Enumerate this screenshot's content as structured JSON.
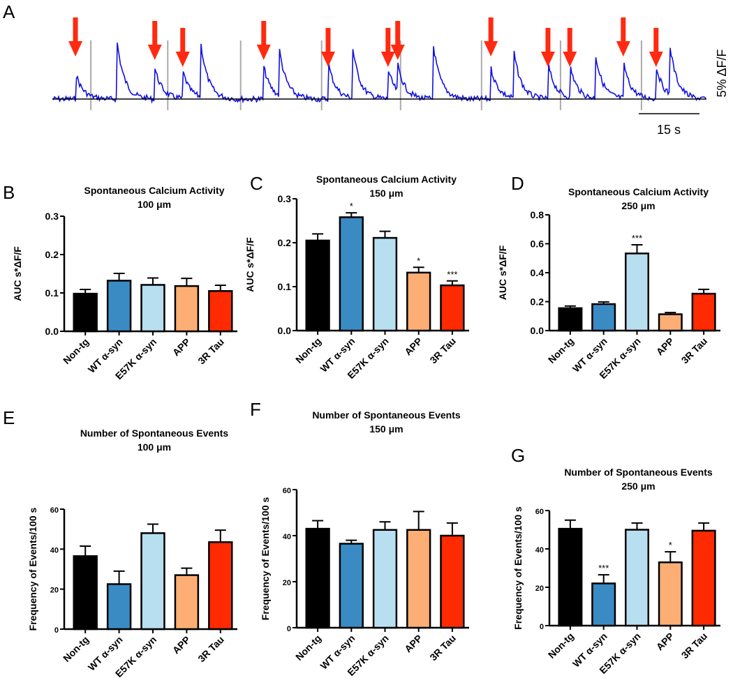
{
  "trace": {
    "label": "A",
    "scale_time": "15 s",
    "scale_amp": "5% ΔF/F",
    "arrow_times_s": [
      5.7,
      25.3,
      32.2,
      52.2,
      68.1,
      82.9,
      85.3,
      108.3,
      122.4,
      127.8,
      141.0,
      149.1
    ],
    "spike_times_s": [
      5.7,
      16,
      25.3,
      32.2,
      36.5,
      52.2,
      56,
      68.1,
      74,
      82.9,
      85.3,
      94,
      108.3,
      114,
      122.4,
      127.8,
      134,
      141.0,
      149.1,
      152.5
    ],
    "stim_times_s": [
      9.5,
      28.5,
      46.5,
      66.5,
      86,
      106,
      125.5,
      145.5
    ],
    "colors": {
      "trace": "#1010e0",
      "arrow": "#ff2a10",
      "stim": "#aaaaaa"
    }
  },
  "chart_data": [
    {
      "panel": "B",
      "type": "bar",
      "title": "Spontaneous Calcium Activity",
      "subtitle": "100 μm",
      "ylabel": "AUC s*ΔF/F",
      "ylim": [
        0,
        0.3
      ],
      "yticks": [
        "0.0",
        "0.1",
        "0.2",
        "0.3"
      ],
      "categories": [
        "Non-tg",
        "WT α-syn",
        "E57K α-syn",
        "APP",
        "3R Tau"
      ],
      "values": [
        0.098,
        0.132,
        0.121,
        0.118,
        0.105
      ],
      "errors": [
        0.011,
        0.019,
        0.018,
        0.02,
        0.015
      ],
      "significance": [
        "",
        "",
        "",
        "",
        ""
      ]
    },
    {
      "panel": "C",
      "type": "bar",
      "title": "Spontaneous Calcium Activity",
      "subtitle": "150 μm",
      "ylabel": "AUC s*ΔF/F",
      "ylim": [
        0,
        0.3
      ],
      "yticks": [
        "0.0",
        "0.1",
        "0.2",
        "0.3"
      ],
      "categories": [
        "Non-tg",
        "WT α-syn",
        "E57K α-syn",
        "APP",
        "3R Tau"
      ],
      "values": [
        0.205,
        0.258,
        0.211,
        0.132,
        0.103
      ],
      "errors": [
        0.015,
        0.01,
        0.015,
        0.012,
        0.01
      ],
      "significance": [
        "",
        "*",
        "",
        "*",
        "***"
      ]
    },
    {
      "panel": "D",
      "type": "bar",
      "title": "Spontaneous Calcium Activity",
      "subtitle": "250 μm",
      "ylabel": "AUC s*ΔF/F",
      "ylim": [
        0,
        0.8
      ],
      "yticks": [
        "0.0",
        "0.2",
        "0.4",
        "0.6",
        "0.8"
      ],
      "categories": [
        "Non-tg",
        "WT α-syn",
        "E57K α-syn",
        "APP",
        "3R Tau"
      ],
      "values": [
        0.155,
        0.183,
        0.533,
        0.113,
        0.255
      ],
      "errors": [
        0.015,
        0.015,
        0.06,
        0.012,
        0.03
      ],
      "significance": [
        "",
        "",
        "***",
        "",
        ""
      ]
    },
    {
      "panel": "E",
      "type": "bar",
      "title": "Number of Spontaneous Events",
      "subtitle": "100 μm",
      "ylabel": "Frequency of Events/100 s",
      "ylim": [
        0,
        60
      ],
      "yticks": [
        "0",
        "20",
        "40",
        "60"
      ],
      "categories": [
        "Non-tg",
        "WT α-syn",
        "E57K α-syn",
        "APP",
        "3R Tau"
      ],
      "values": [
        36.5,
        22.5,
        48,
        27,
        43.5
      ],
      "errors": [
        5,
        6.5,
        4.5,
        3.5,
        6
      ],
      "significance": [
        "",
        "",
        "",
        "",
        ""
      ]
    },
    {
      "panel": "F",
      "type": "bar",
      "title": "Number of Spontaneous Events",
      "subtitle": "150 μm",
      "ylabel": "Frequency of Events/100 s",
      "ylim": [
        0,
        60
      ],
      "yticks": [
        "0",
        "20",
        "40",
        "60"
      ],
      "categories": [
        "Non-tg",
        "WT α-syn",
        "E57K α-syn",
        "APP",
        "3R Tau"
      ],
      "values": [
        43,
        36.5,
        42.5,
        42.5,
        40
      ],
      "errors": [
        3.5,
        1.5,
        3.5,
        8,
        5.5
      ],
      "significance": [
        "",
        "",
        "",
        "",
        ""
      ]
    },
    {
      "panel": "G",
      "type": "bar",
      "title": "Number of Spontaneous Events",
      "subtitle": "250 μm",
      "ylabel": "Frequency of Events/100 s",
      "ylim": [
        0,
        60
      ],
      "yticks": [
        "0",
        "20",
        "40",
        "60"
      ],
      "categories": [
        "Non-tg",
        "WT α-syn",
        "E57K α-syn",
        "APP",
        "3R Tau"
      ],
      "values": [
        50.5,
        22,
        50,
        33,
        49.5
      ],
      "errors": [
        4.5,
        4.5,
        3.5,
        5.5,
        4
      ],
      "significance": [
        "",
        "***",
        "",
        "*",
        ""
      ]
    }
  ],
  "bar_colors": [
    "#000000",
    "#3a8bc4",
    "#b8dff0",
    "#fdae74",
    "#ff2a00"
  ]
}
